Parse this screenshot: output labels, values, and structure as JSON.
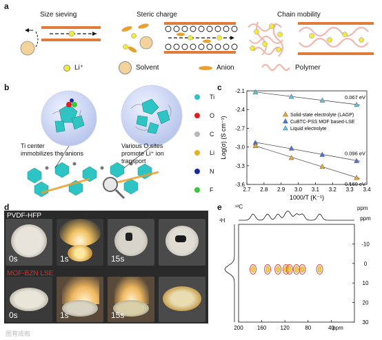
{
  "panel_a": {
    "label": "a",
    "titles": [
      "Size sieving",
      "Steric charge",
      "Chain mobility"
    ],
    "legend": [
      {
        "icon": "li-ion-icon",
        "label": "Li⁺"
      },
      {
        "icon": "solvent-icon",
        "label": "Solvent"
      },
      {
        "icon": "anion-icon",
        "label": "Anion"
      },
      {
        "icon": "polymer-icon",
        "label": "Polymer"
      }
    ],
    "colors": {
      "membrane": "#e07b39",
      "li": "#f2ea3a",
      "solvent": "#f3d39a",
      "polymer": "#f2b8ae"
    }
  },
  "panel_b": {
    "label": "b",
    "annotations": [
      "Ti center\nimmobilizes the anions",
      "Various O sites\npromote  Li⁺ ion\ntransport"
    ],
    "elements": [
      {
        "symbol": "Ti",
        "color": "#2ec4c4"
      },
      {
        "symbol": "O",
        "color": "#e02020"
      },
      {
        "symbol": "C",
        "color": "#b8b8b8"
      },
      {
        "symbol": "Li",
        "color": "#e8b020"
      },
      {
        "symbol": "N",
        "color": "#1c2a9a"
      },
      {
        "symbol": "F",
        "color": "#38c838"
      }
    ]
  },
  "panel_c": {
    "label": "c",
    "chart_data": {
      "type": "scatter",
      "xlabel": "1000/T (K⁻¹)",
      "ylabel": "Log(σ) (S cm⁻¹)",
      "xlim": [
        2.7,
        3.4
      ],
      "ylim": [
        -3.6,
        -2.1
      ],
      "xticks": [
        2.7,
        2.8,
        2.9,
        3.0,
        3.1,
        3.2,
        3.3,
        3.4
      ],
      "yticks": [
        -2.1,
        -2.4,
        -2.7,
        -3.0,
        -3.3,
        -3.6
      ],
      "series": [
        {
          "name": "Liquid electrolyte",
          "color": "#5ec8d8",
          "marker": "triangle",
          "x": [
            2.75,
            2.96,
            3.14,
            3.34
          ],
          "y": [
            -2.12,
            -2.19,
            -2.25,
            -2.32
          ],
          "annotation": "0.067 eV"
        },
        {
          "name": "CuBTC-PSS  MOF based-LSE",
          "color": "#4a72d8",
          "marker": "triangle",
          "x": [
            2.75,
            2.96,
            3.14,
            3.34
          ],
          "y": [
            -2.93,
            -3.02,
            -3.12,
            -3.22
          ],
          "annotation": "0.096 eV"
        },
        {
          "name": "Solid-state electrolyte (LAGP)",
          "color": "#f0a830",
          "marker": "triangle",
          "x": [
            2.75,
            2.96,
            3.14,
            3.34
          ],
          "y": [
            -2.98,
            -3.17,
            -3.31,
            -3.49
          ],
          "annotation": "0.160 eV"
        }
      ],
      "legend_order": [
        "Solid-state electrolyte (LAGP)",
        "CuBTC-PSS  MOF based-LSE",
        "Liquid electrolyte"
      ],
      "legend_position": "right",
      "grid": false
    }
  },
  "panel_d": {
    "label": "d",
    "rows": [
      {
        "title": "PVDF-HFP",
        "title_color": "#ffffff",
        "times": [
          "0s",
          "1s",
          "15s",
          ""
        ]
      },
      {
        "title": "MOF-BZN LSE",
        "title_color": "#e03030",
        "times": [
          "0s",
          "1s",
          "15s",
          ""
        ]
      }
    ]
  },
  "panel_e": {
    "label": "e",
    "c_label": "¹³C",
    "h_label": "¹H",
    "ppm": "ppm",
    "chart_data": {
      "type": "heatmap",
      "xlabel": "ppm",
      "ylabel": "ppm",
      "xlim": [
        200,
        0
      ],
      "ylim": [
        30,
        -20
      ],
      "xticks": [
        200,
        160,
        120,
        80,
        40
      ],
      "yticks": [
        -10,
        0,
        10,
        20,
        30
      ],
      "peaks": [
        {
          "x": 175,
          "y": 3
        },
        {
          "x": 150,
          "y": 3
        },
        {
          "x": 132,
          "y": 3
        },
        {
          "x": 118,
          "y": 3
        },
        {
          "x": 112,
          "y": 3
        },
        {
          "x": 100,
          "y": 3
        },
        {
          "x": 90,
          "y": 3
        },
        {
          "x": 60,
          "y": 3
        }
      ],
      "grid": false
    }
  },
  "watermark": "图育成瓶"
}
